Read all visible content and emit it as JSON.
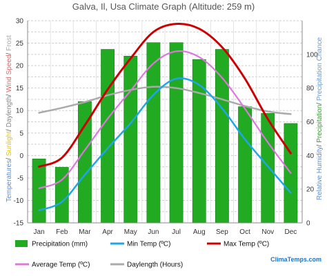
{
  "chart_data": {
    "type": "bar",
    "title": "Galva, Il, Usa Climate Graph (Altitude: 259 m)",
    "categories": [
      "Jan",
      "Feb",
      "Mar",
      "Apr",
      "May",
      "Jun",
      "Jul",
      "Aug",
      "Sep",
      "Oct",
      "Nov",
      "Dec"
    ],
    "left_axis": {
      "label_parts": [
        {
          "text": "Temperatures",
          "color": "#5a8fd6"
        },
        {
          "text": "/ ",
          "color": "#555555"
        },
        {
          "text": "Sunlight",
          "color": "#e8c200"
        },
        {
          "text": "/ ",
          "color": "#555555"
        },
        {
          "text": "Daylength",
          "color": "#888888"
        },
        {
          "text": "/ ",
          "color": "#555555"
        },
        {
          "text": "Wind Speed",
          "color": "#e06666"
        },
        {
          "text": "/ ",
          "color": "#555555"
        },
        {
          "text": "Frost",
          "color": "#aaaaaa"
        }
      ],
      "ylim": [
        -15,
        30
      ],
      "ticks": [
        "-15",
        "-10",
        "-5",
        "0",
        "5",
        "10",
        "15",
        "20",
        "25",
        "30"
      ]
    },
    "right_axis": {
      "label_parts": [
        {
          "text": "Relative Humidity",
          "color": "#5a8fd6"
        },
        {
          "text": "/ ",
          "color": "#555555"
        },
        {
          "text": "Precipitation",
          "color": "#2e9e2e"
        },
        {
          "text": "/ ",
          "color": "#555555"
        },
        {
          "text": "Precipitation Chance",
          "color": "#6a9ad6"
        }
      ],
      "ylim": [
        0,
        120
      ],
      "ticks": [
        "0",
        "20",
        "40",
        "60",
        "80",
        "100"
      ]
    },
    "series": [
      {
        "name": "Precipitation (mm)",
        "kind": "bar",
        "axis": "right",
        "color": "#22aa22",
        "values": [
          38,
          33,
          72,
          103,
          99,
          107,
          107,
          97,
          103,
          69,
          65,
          59
        ]
      },
      {
        "name": "Min Temp (ºC)",
        "kind": "line",
        "axis": "left",
        "color": "#1ea6e6",
        "values": [
          -12.2,
          -10.3,
          -4.3,
          1.6,
          7.2,
          13.5,
          17.1,
          15.7,
          10.5,
          3.6,
          -2.4,
          -8.3
        ]
      },
      {
        "name": "Max Temp (ºC)",
        "kind": "line",
        "axis": "left",
        "color": "#cc0000",
        "values": [
          -2.5,
          -0.5,
          6.7,
          14.7,
          21.6,
          27.5,
          29.3,
          28.2,
          24.1,
          17.1,
          8.1,
          0.5
        ]
      },
      {
        "name": "Average Temp (ºC)",
        "kind": "line",
        "axis": "left",
        "color": "#dd77dd",
        "values": [
          -7.3,
          -5.4,
          1.2,
          8.2,
          14.4,
          20.5,
          23.2,
          21.9,
          17.3,
          10.4,
          2.9,
          -3.9
        ]
      },
      {
        "name": "Daylength (Hours)",
        "kind": "line",
        "axis": "left",
        "color": "#aaaaaa",
        "values": [
          9.5,
          10.6,
          11.9,
          13.4,
          14.6,
          15.3,
          15.0,
          13.9,
          12.5,
          11.0,
          9.8,
          9.2
        ]
      }
    ],
    "grid": true,
    "legend_position": "bottom"
  },
  "brand": {
    "text": "ClimaTemps.com",
    "color": "#1a74c9"
  }
}
